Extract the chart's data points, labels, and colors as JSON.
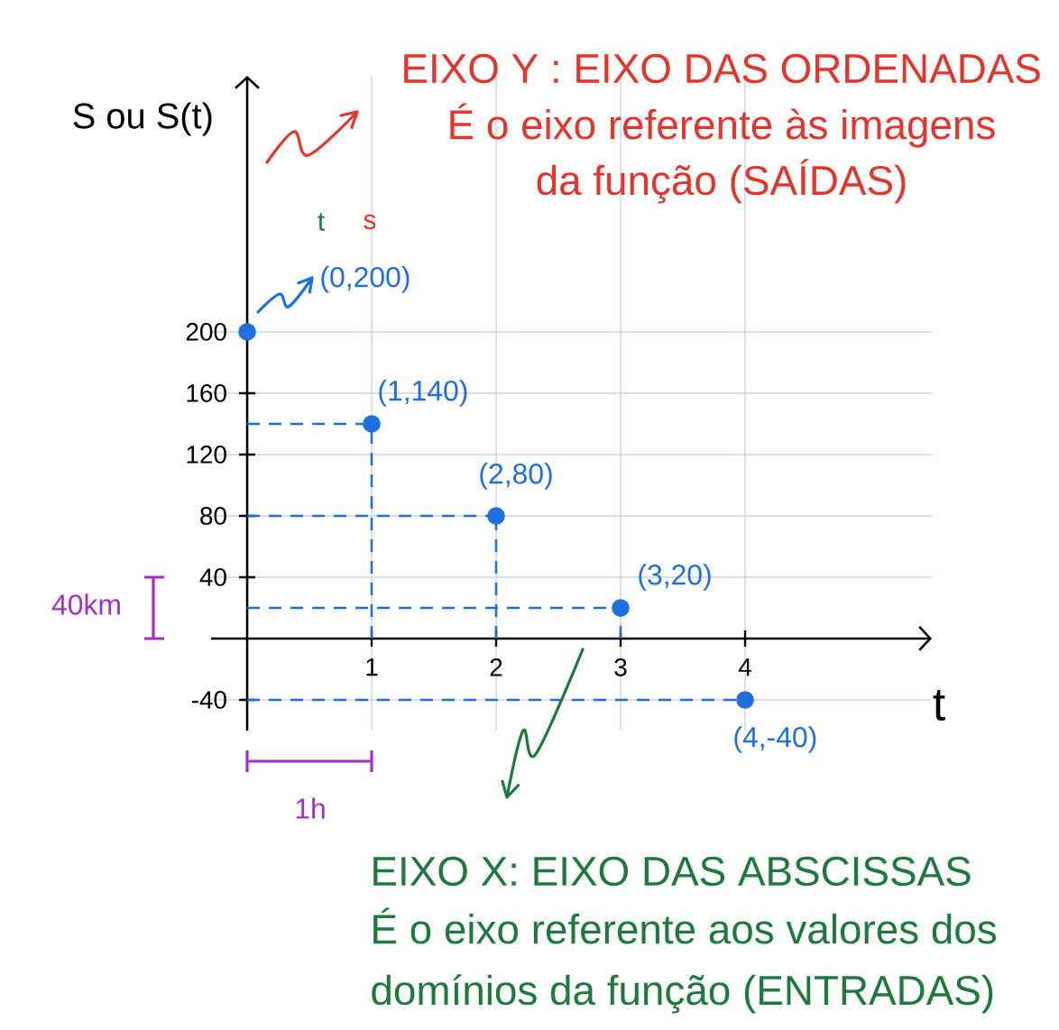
{
  "chart_data": {
    "type": "scatter",
    "xlabel": "t",
    "ylabel": "S ou S(t)",
    "x": [
      0,
      1,
      2,
      3,
      4
    ],
    "values": [
      200,
      140,
      80,
      20,
      -40
    ],
    "color": "#1f6fe0",
    "xlim": [
      -0.29,
      5.5
    ],
    "ylim": [
      -60,
      367
    ],
    "xticks": [
      1,
      2,
      3,
      4
    ],
    "yticks": [
      -40,
      40,
      80,
      120,
      160,
      200
    ],
    "grid": true,
    "marker": "circle",
    "line_style": "dashed",
    "annotations": [
      "EIXO Y : EIXO DAS ORDENADAS",
      "É o eixo referente às imagens da função (SAÍDAS)",
      "t",
      "s",
      "40km",
      "1h",
      "EIXO X: EIXO DAS ABSCISSAS",
      "É o eixo referente aos valores dos domínios da função (ENTRADAS)",
      {
        "text": "(0,200)",
        "x": 0,
        "y": 200
      },
      {
        "text": "(1,140)",
        "x": 1,
        "y": 140
      },
      {
        "text": "(2,80)",
        "x": 2,
        "y": 80
      },
      {
        "text": "(3,20)",
        "x": 3,
        "y": 20
      },
      {
        "text": "(4,-40)",
        "x": 4,
        "y": -40
      }
    ]
  }
}
